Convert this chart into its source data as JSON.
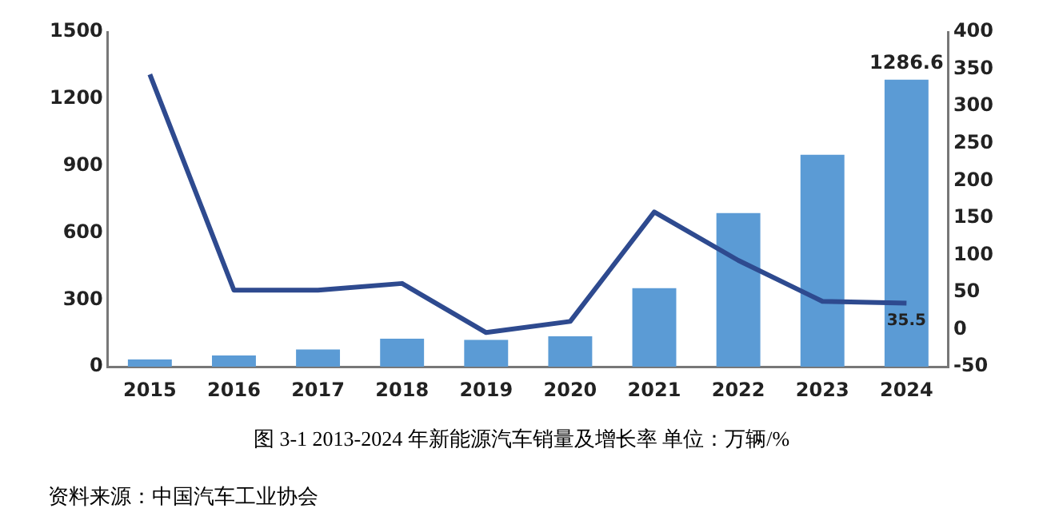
{
  "chart_data": {
    "type": "bar",
    "title": "图 3-1   2013-2024 年新能源汽车销量及增长率  单位：万辆/%",
    "annotations": [
      "资料来源：中国汽车工业协会"
    ],
    "categories": [
      "2015",
      "2016",
      "2017",
      "2018",
      "2019",
      "2020",
      "2021",
      "2022",
      "2023",
      "2024"
    ],
    "series": [
      {
        "color": "#5b9bd5",
        "values": [
          33,
          51,
          78,
          126,
          121,
          137,
          352,
          689,
          950,
          1286.6
        ],
        "value_labels": [
          null,
          null,
          null,
          null,
          null,
          null,
          null,
          null,
          null,
          "1286.6"
        ]
      },
      {
        "type": "line",
        "axis": "y2",
        "color": "#2e4a8f",
        "values": [
          343,
          53,
          53,
          62,
          -4,
          11,
          158,
          93,
          38,
          35.5
        ],
        "value_labels": [
          null,
          null,
          null,
          null,
          null,
          null,
          null,
          null,
          null,
          "35.5"
        ]
      }
    ],
    "ylim": [
      0,
      1500
    ],
    "yticks": [
      0,
      300,
      600,
      900,
      1200,
      1500
    ],
    "y2lim": [
      -50,
      400
    ],
    "y2ticks": [
      -50,
      0,
      50,
      100,
      150,
      200,
      250,
      300,
      350,
      400
    ],
    "grid": false,
    "legend": false,
    "marker": "none"
  }
}
